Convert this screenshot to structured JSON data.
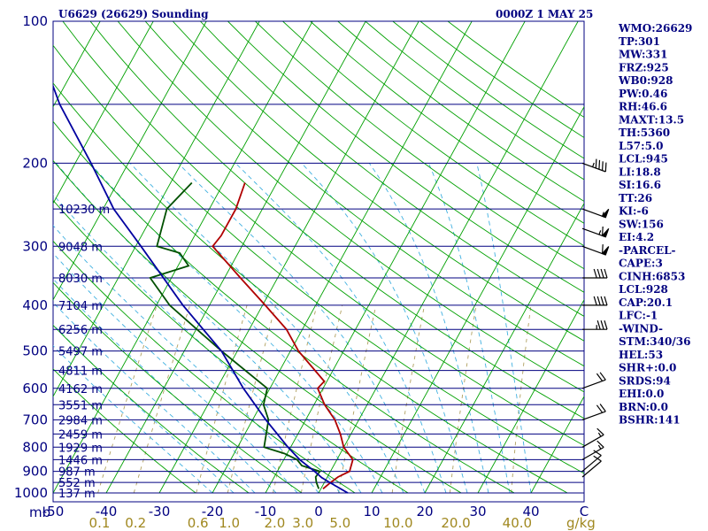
{
  "header": {
    "station": "U6629 (26629) Sounding",
    "time": "0000Z  1 MAY 25"
  },
  "axis": {
    "pressure_unit": "mb",
    "mixing_unit": "g/kg"
  },
  "colors": {
    "frame": "#000080",
    "isotherm": "#00a000",
    "moist_adiabat": "#40b0e0",
    "mixing_ratio": "#b0a060",
    "temperature": "#b00000",
    "dewpoint": "#005000",
    "parcel": "#0000a0"
  },
  "sidebar": [
    "WMO:26629",
    "TP:301",
    "MW:331",
    "FRZ:925",
    "WB0:928",
    "PW:0.46",
    "RH:46.6",
    "MAXT:13.5",
    "TH:5360",
    "L57:5.0",
    "LCL:945",
    "LI:18.8",
    "SI:16.6",
    "TT:26",
    "KI:-6",
    "SW:156",
    "EI:4.2",
    "-PARCEL-",
    "CAPE:3",
    "CINH:6853",
    "LCL:928",
    "CAP:20.1",
    "LFC:-1",
    "-WIND-",
    "STM:340/36",
    "HEL:53",
    "SHR+:0.0",
    "SRDS:94",
    "EHI:0.0",
    "BRN:0.0",
    "BSHR:141"
  ],
  "chart_data": {
    "type": "line",
    "chart_kind": "skew-T log-p sounding",
    "pressure_axis": {
      "scale": "log",
      "range": [
        1000,
        100
      ],
      "tick_labels": [
        "100",
        "200",
        "300",
        "400",
        "500",
        "600",
        "700",
        "800",
        "900",
        "1000"
      ]
    },
    "temperature_axis": {
      "range": [
        -50,
        50
      ],
      "tick_labels": [
        "-50",
        "-40",
        "-30",
        "-20",
        "-10",
        "0",
        "10",
        "20",
        "30",
        "40",
        "C"
      ]
    },
    "mixing_ratio_labels": [
      "0.1",
      "0.2",
      "0.6",
      "1.0",
      "2.0",
      "3.0",
      "5.0",
      "10.0",
      "20.0",
      "40.0",
      "g/kg"
    ],
    "height_labels": [
      {
        "p": 250,
        "label": "10230 m"
      },
      {
        "p": 300,
        "label": "9048 m"
      },
      {
        "p": 350,
        "label": "8030 m"
      },
      {
        "p": 400,
        "label": "7104 m"
      },
      {
        "p": 450,
        "label": "6256 m"
      },
      {
        "p": 500,
        "label": "5497 m"
      },
      {
        "p": 550,
        "label": "4811 m"
      },
      {
        "p": 600,
        "label": "4162 m"
      },
      {
        "p": 650,
        "label": "3551 m"
      },
      {
        "p": 700,
        "label": "2984 m"
      },
      {
        "p": 750,
        "label": "2459 m"
      },
      {
        "p": 800,
        "label": "1929 m"
      },
      {
        "p": 850,
        "label": "1446 m"
      },
      {
        "p": 900,
        "label": "987 m"
      },
      {
        "p": 950,
        "label": "552 m"
      },
      {
        "p": 1000,
        "label": "137 m"
      }
    ],
    "series": [
      {
        "key": "temperature",
        "points": [
          {
            "p": 980,
            "t": 0.4
          },
          {
            "p": 950,
            "t": 1.2
          },
          {
            "p": 925,
            "t": 2.0
          },
          {
            "p": 900,
            "t": 3.6
          },
          {
            "p": 850,
            "t": 3.0
          },
          {
            "p": 800,
            "t": 0.0
          },
          {
            "p": 750,
            "t": -2.0
          },
          {
            "p": 700,
            "t": -4.5
          },
          {
            "p": 650,
            "t": -8.0
          },
          {
            "p": 600,
            "t": -11.0
          },
          {
            "p": 580,
            "t": -10.5
          },
          {
            "p": 500,
            "t": -18.5
          },
          {
            "p": 450,
            "t": -23.0
          },
          {
            "p": 400,
            "t": -29.5
          },
          {
            "p": 350,
            "t": -37.0
          },
          {
            "p": 300,
            "t": -45.5
          },
          {
            "p": 285,
            "t": -45.0
          },
          {
            "p": 250,
            "t": -45.0
          },
          {
            "p": 220,
            "t": -46.0
          }
        ]
      },
      {
        "key": "dewpoint",
        "points": [
          {
            "p": 980,
            "t": -0.4
          },
          {
            "p": 950,
            "t": -1.5
          },
          {
            "p": 925,
            "t": -2.2
          },
          {
            "p": 900,
            "t": -2.0
          },
          {
            "p": 875,
            "t": -6.0
          },
          {
            "p": 850,
            "t": -7.5
          },
          {
            "p": 825,
            "t": -10.5
          },
          {
            "p": 800,
            "t": -15.0
          },
          {
            "p": 700,
            "t": -17.0
          },
          {
            "p": 650,
            "t": -19.5
          },
          {
            "p": 600,
            "t": -20.5
          },
          {
            "p": 500,
            "t": -33.0
          },
          {
            "p": 400,
            "t": -47.5
          },
          {
            "p": 350,
            "t": -54.0
          },
          {
            "p": 330,
            "t": -48.0
          },
          {
            "p": 310,
            "t": -51.0
          },
          {
            "p": 300,
            "t": -56.0
          },
          {
            "p": 250,
            "t": -58.0
          },
          {
            "p": 220,
            "t": -56.0
          }
        ]
      },
      {
        "key": "parcel",
        "points": [
          {
            "p": 1000,
            "t": 5.5
          },
          {
            "p": 950,
            "t": 1.0
          },
          {
            "p": 928,
            "t": -1.0
          },
          {
            "p": 900,
            "t": -3.0
          },
          {
            "p": 850,
            "t": -7.0
          },
          {
            "p": 800,
            "t": -10.5
          },
          {
            "p": 700,
            "t": -17.5
          },
          {
            "p": 600,
            "t": -25.0
          },
          {
            "p": 500,
            "t": -33.0
          },
          {
            "p": 400,
            "t": -45.0
          },
          {
            "p": 300,
            "t": -59.0
          },
          {
            "p": 250,
            "t": -68.0
          },
          {
            "p": 200,
            "t": -77.0
          },
          {
            "p": 150,
            "t": -89.0
          },
          {
            "p": 110,
            "t": -100.0
          }
        ]
      }
    ],
    "wind_barbs": [
      {
        "p": 200,
        "dir": 290,
        "speed": 45
      },
      {
        "p": 250,
        "dir": 290,
        "speed": 55
      },
      {
        "p": 275,
        "dir": 290,
        "speed": 65
      },
      {
        "p": 300,
        "dir": 290,
        "speed": 60
      },
      {
        "p": 350,
        "dir": 270,
        "speed": 40
      },
      {
        "p": 400,
        "dir": 270,
        "speed": 40
      },
      {
        "p": 450,
        "dir": 270,
        "speed": 35
      },
      {
        "p": 600,
        "dir": 250,
        "speed": 20
      },
      {
        "p": 700,
        "dir": 250,
        "speed": 20
      },
      {
        "p": 800,
        "dir": 240,
        "speed": 15
      },
      {
        "p": 850,
        "dir": 240,
        "speed": 15
      },
      {
        "p": 900,
        "dir": 230,
        "speed": 10
      },
      {
        "p": 925,
        "dir": 230,
        "speed": 10
      }
    ]
  }
}
